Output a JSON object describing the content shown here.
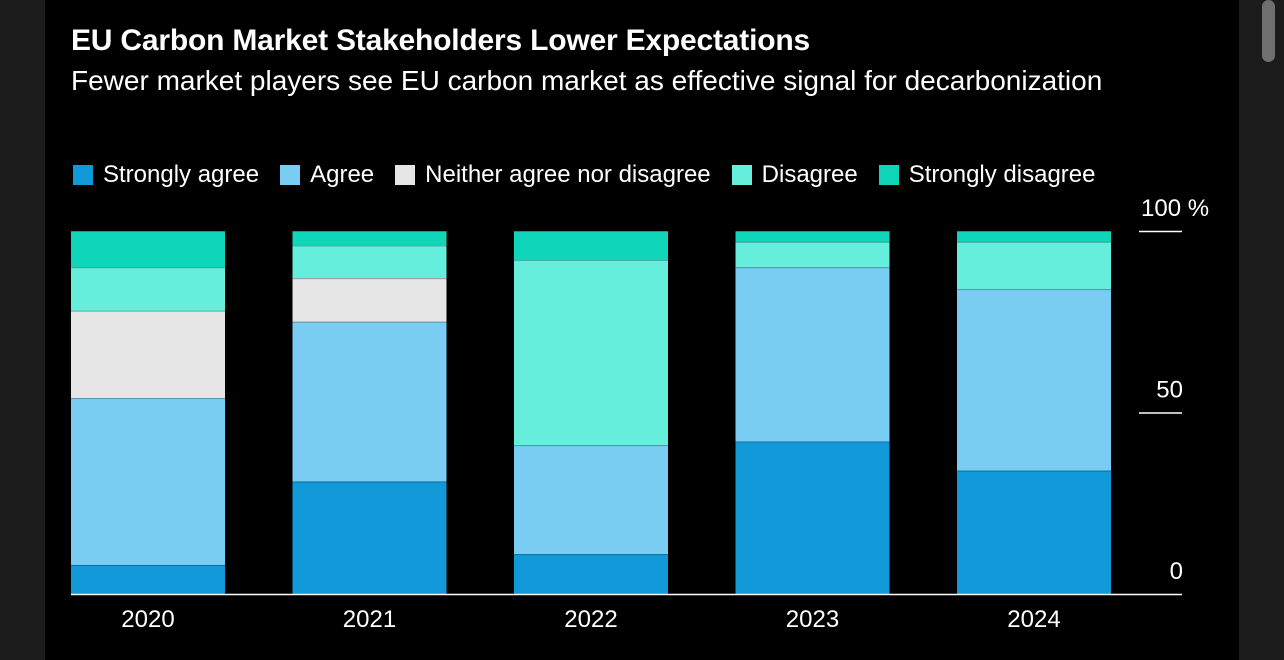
{
  "title": "EU Carbon Market Stakeholders Lower Expectations",
  "subtitle": "Fewer market players see EU carbon market as effective signal for decarbonization",
  "chart_data": {
    "type": "bar",
    "stacked": true,
    "categories": [
      "2020",
      "2021",
      "2022",
      "2023",
      "2024"
    ],
    "series": [
      {
        "name": "Strongly agree",
        "color": "#1199d9",
        "values": [
          8,
          31,
          11,
          42,
          34
        ]
      },
      {
        "name": "Agree",
        "color": "#79cdf3",
        "values": [
          46,
          44,
          30,
          48,
          50
        ]
      },
      {
        "name": "Neither agree nor disagree",
        "color": "#e6e6e6",
        "values": [
          24,
          12,
          0,
          0,
          0
        ]
      },
      {
        "name": "Disagree",
        "color": "#66eedd",
        "values": [
          12,
          9,
          51,
          7,
          13
        ]
      },
      {
        "name": "Strongly disagree",
        "color": "#0fd6b8",
        "values": [
          10,
          4,
          8,
          3,
          3
        ]
      }
    ],
    "ylim": [
      0,
      100
    ],
    "yticks": [
      {
        "value": 0,
        "label": "0"
      },
      {
        "value": 50,
        "label": "50"
      },
      {
        "value": 100,
        "label": "100 %"
      }
    ],
    "legend_position": "top-left",
    "grid": false,
    "axis_color": "#ffffff"
  }
}
